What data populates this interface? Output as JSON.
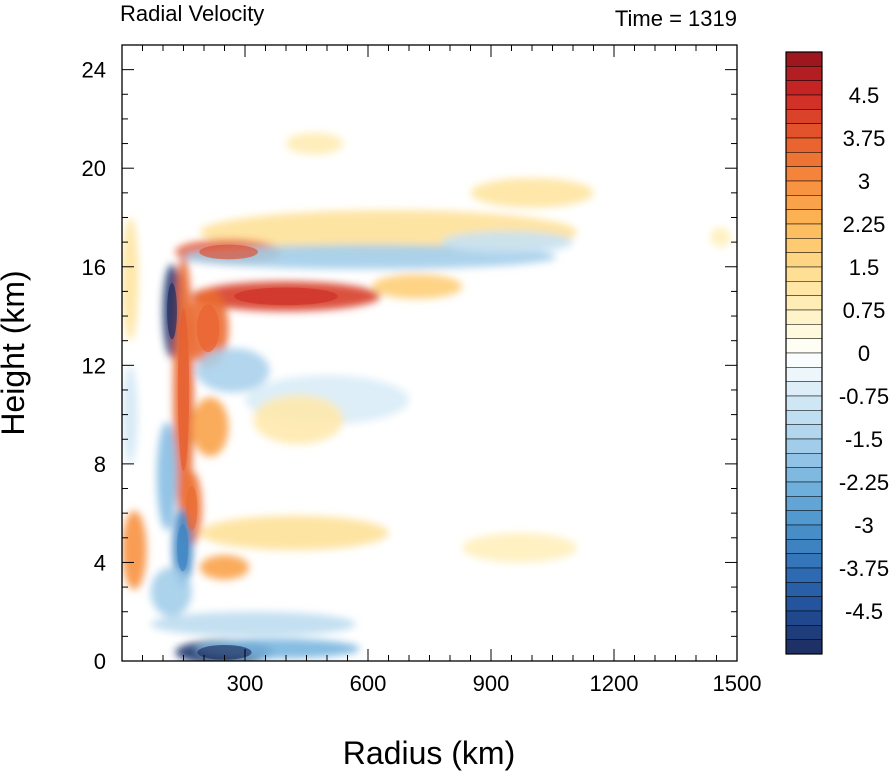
{
  "chart_data": {
    "type": "heatmap",
    "title": "Radial Velocity",
    "subtitle": "Time = 1319",
    "xlabel": "Radius (km)",
    "ylabel": "Height (km)",
    "xlim": [
      0,
      1500
    ],
    "ylim": [
      0,
      25
    ],
    "x_ticks": [
      300,
      600,
      900,
      1200,
      1500
    ],
    "y_ticks": [
      0,
      4,
      8,
      12,
      16,
      20,
      24
    ],
    "x_tick_labels": [
      "300",
      "600",
      "900",
      "1200",
      "1500"
    ],
    "y_tick_labels": [
      "0",
      "4",
      "8",
      "12",
      "16",
      "20",
      "24"
    ],
    "colorbar": {
      "min": -5.25,
      "max": 5.25,
      "step": 0.25,
      "tick_values": [
        4.5,
        3.75,
        3,
        2.25,
        1.5,
        0.75,
        0,
        -0.75,
        -1.5,
        -2.25,
        -3,
        -3.75,
        -4.5
      ],
      "tick_labels": [
        "4.5",
        "3.75",
        "3",
        "2.25",
        "1.5",
        "0.75",
        "0",
        "-0.75",
        "-1.5",
        "-2.25",
        "-3",
        "-3.75",
        "-4.5"
      ]
    },
    "features": [
      {
        "x": 470,
        "y": 21.0,
        "rx": 70,
        "ry": 0.45,
        "v": 0.9
      },
      {
        "x": 650,
        "y": 17.4,
        "rx": 460,
        "ry": 0.9,
        "v": 1.3
      },
      {
        "x": 1000,
        "y": 19.0,
        "rx": 150,
        "ry": 0.6,
        "v": 1.2
      },
      {
        "x": 260,
        "y": 16.6,
        "rx": 130,
        "ry": 0.5,
        "v": 3.8
      },
      {
        "x": 600,
        "y": 16.4,
        "rx": 460,
        "ry": 0.5,
        "v": -1.6
      },
      {
        "x": 940,
        "y": 17.0,
        "rx": 160,
        "ry": 0.45,
        "v": -1.0
      },
      {
        "x": 400,
        "y": 14.8,
        "rx": 230,
        "ry": 0.6,
        "v": 4.2
      },
      {
        "x": 720,
        "y": 15.2,
        "rx": 110,
        "ry": 0.5,
        "v": 1.8
      },
      {
        "x": 210,
        "y": 13.5,
        "rx": 50,
        "ry": 1.6,
        "v": 3.5
      },
      {
        "x": 122,
        "y": 14.2,
        "rx": 22,
        "ry": 1.9,
        "v": -5.0
      },
      {
        "x": 150,
        "y": 11.0,
        "rx": 25,
        "ry": 5.5,
        "v": 3.6
      },
      {
        "x": 270,
        "y": 11.8,
        "rx": 90,
        "ry": 0.9,
        "v": -1.5
      },
      {
        "x": 500,
        "y": 10.6,
        "rx": 200,
        "ry": 1.0,
        "v": -0.7
      },
      {
        "x": 215,
        "y": 9.5,
        "rx": 45,
        "ry": 1.2,
        "v": 2.6
      },
      {
        "x": 430,
        "y": 9.8,
        "rx": 110,
        "ry": 1.0,
        "v": 1.0
      },
      {
        "x": 110,
        "y": 7.5,
        "rx": 25,
        "ry": 2.2,
        "v": -2.0
      },
      {
        "x": 170,
        "y": 6.2,
        "rx": 25,
        "ry": 1.5,
        "v": 3.4
      },
      {
        "x": 148,
        "y": 4.6,
        "rx": 25,
        "ry": 1.6,
        "v": -3.2
      },
      {
        "x": 30,
        "y": 4.5,
        "rx": 30,
        "ry": 1.6,
        "v": 2.9
      },
      {
        "x": 250,
        "y": 3.8,
        "rx": 60,
        "ry": 0.5,
        "v": 2.6
      },
      {
        "x": 420,
        "y": 5.2,
        "rx": 230,
        "ry": 0.7,
        "v": 1.3
      },
      {
        "x": 970,
        "y": 4.6,
        "rx": 140,
        "ry": 0.6,
        "v": 0.8
      },
      {
        "x": 120,
        "y": 2.8,
        "rx": 50,
        "ry": 1.0,
        "v": -1.6
      },
      {
        "x": 320,
        "y": 1.5,
        "rx": 250,
        "ry": 0.5,
        "v": -1.2
      },
      {
        "x": 250,
        "y": 0.35,
        "rx": 120,
        "ry": 0.5,
        "v": -5.0
      },
      {
        "x": 380,
        "y": 0.5,
        "rx": 200,
        "ry": 0.4,
        "v": -2.2
      },
      {
        "x": 20,
        "y": 15.5,
        "rx": 20,
        "ry": 2.5,
        "v": 1.2
      },
      {
        "x": 20,
        "y": 10.0,
        "rx": 18,
        "ry": 2.0,
        "v": -0.8
      },
      {
        "x": 1460,
        "y": 17.2,
        "rx": 25,
        "ry": 0.4,
        "v": 0.8
      }
    ]
  }
}
